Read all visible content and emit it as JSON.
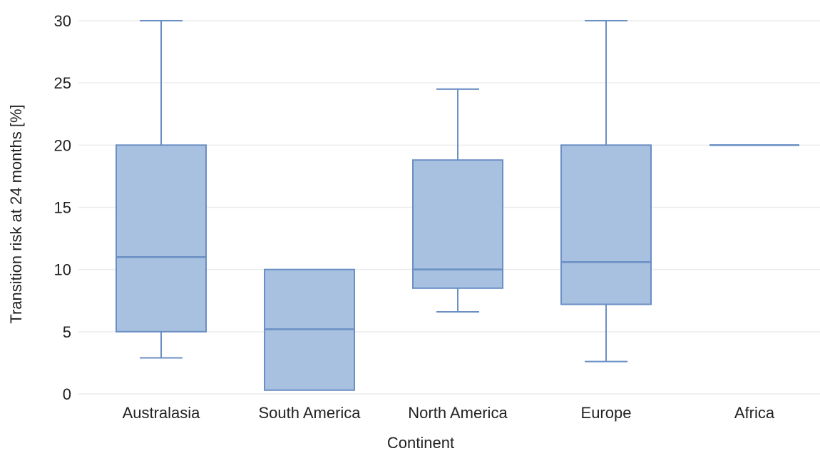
{
  "chart_data": {
    "type": "box",
    "xlabel": "Continent",
    "ylabel": "Transition risk at 24 months [%]",
    "ylim": [
      0,
      30
    ],
    "yticks": [
      0,
      5,
      10,
      15,
      20,
      25,
      30
    ],
    "grid": true,
    "color": "#6a8fc4",
    "fill": "#a9c1e0",
    "categories": [
      "Australasia",
      "South America",
      "North America",
      "Europe",
      "Africa"
    ],
    "boxes": [
      {
        "category": "Australasia",
        "min": 2.9,
        "q1": 5.0,
        "median": 11.0,
        "q3": 20.0,
        "max": 30.0
      },
      {
        "category": "South America",
        "min": 0.3,
        "q1": 0.3,
        "median": 5.2,
        "q3": 10.0,
        "max": 10.0
      },
      {
        "category": "North America",
        "min": 6.6,
        "q1": 8.5,
        "median": 10.0,
        "q3": 18.8,
        "max": 24.5
      },
      {
        "category": "Europe",
        "min": 2.6,
        "q1": 7.2,
        "median": 10.6,
        "q3": 20.0,
        "max": 30.0
      },
      {
        "category": "Africa",
        "min": 20.0,
        "q1": 20.0,
        "median": 20.0,
        "q3": 20.0,
        "max": 20.0
      }
    ]
  }
}
